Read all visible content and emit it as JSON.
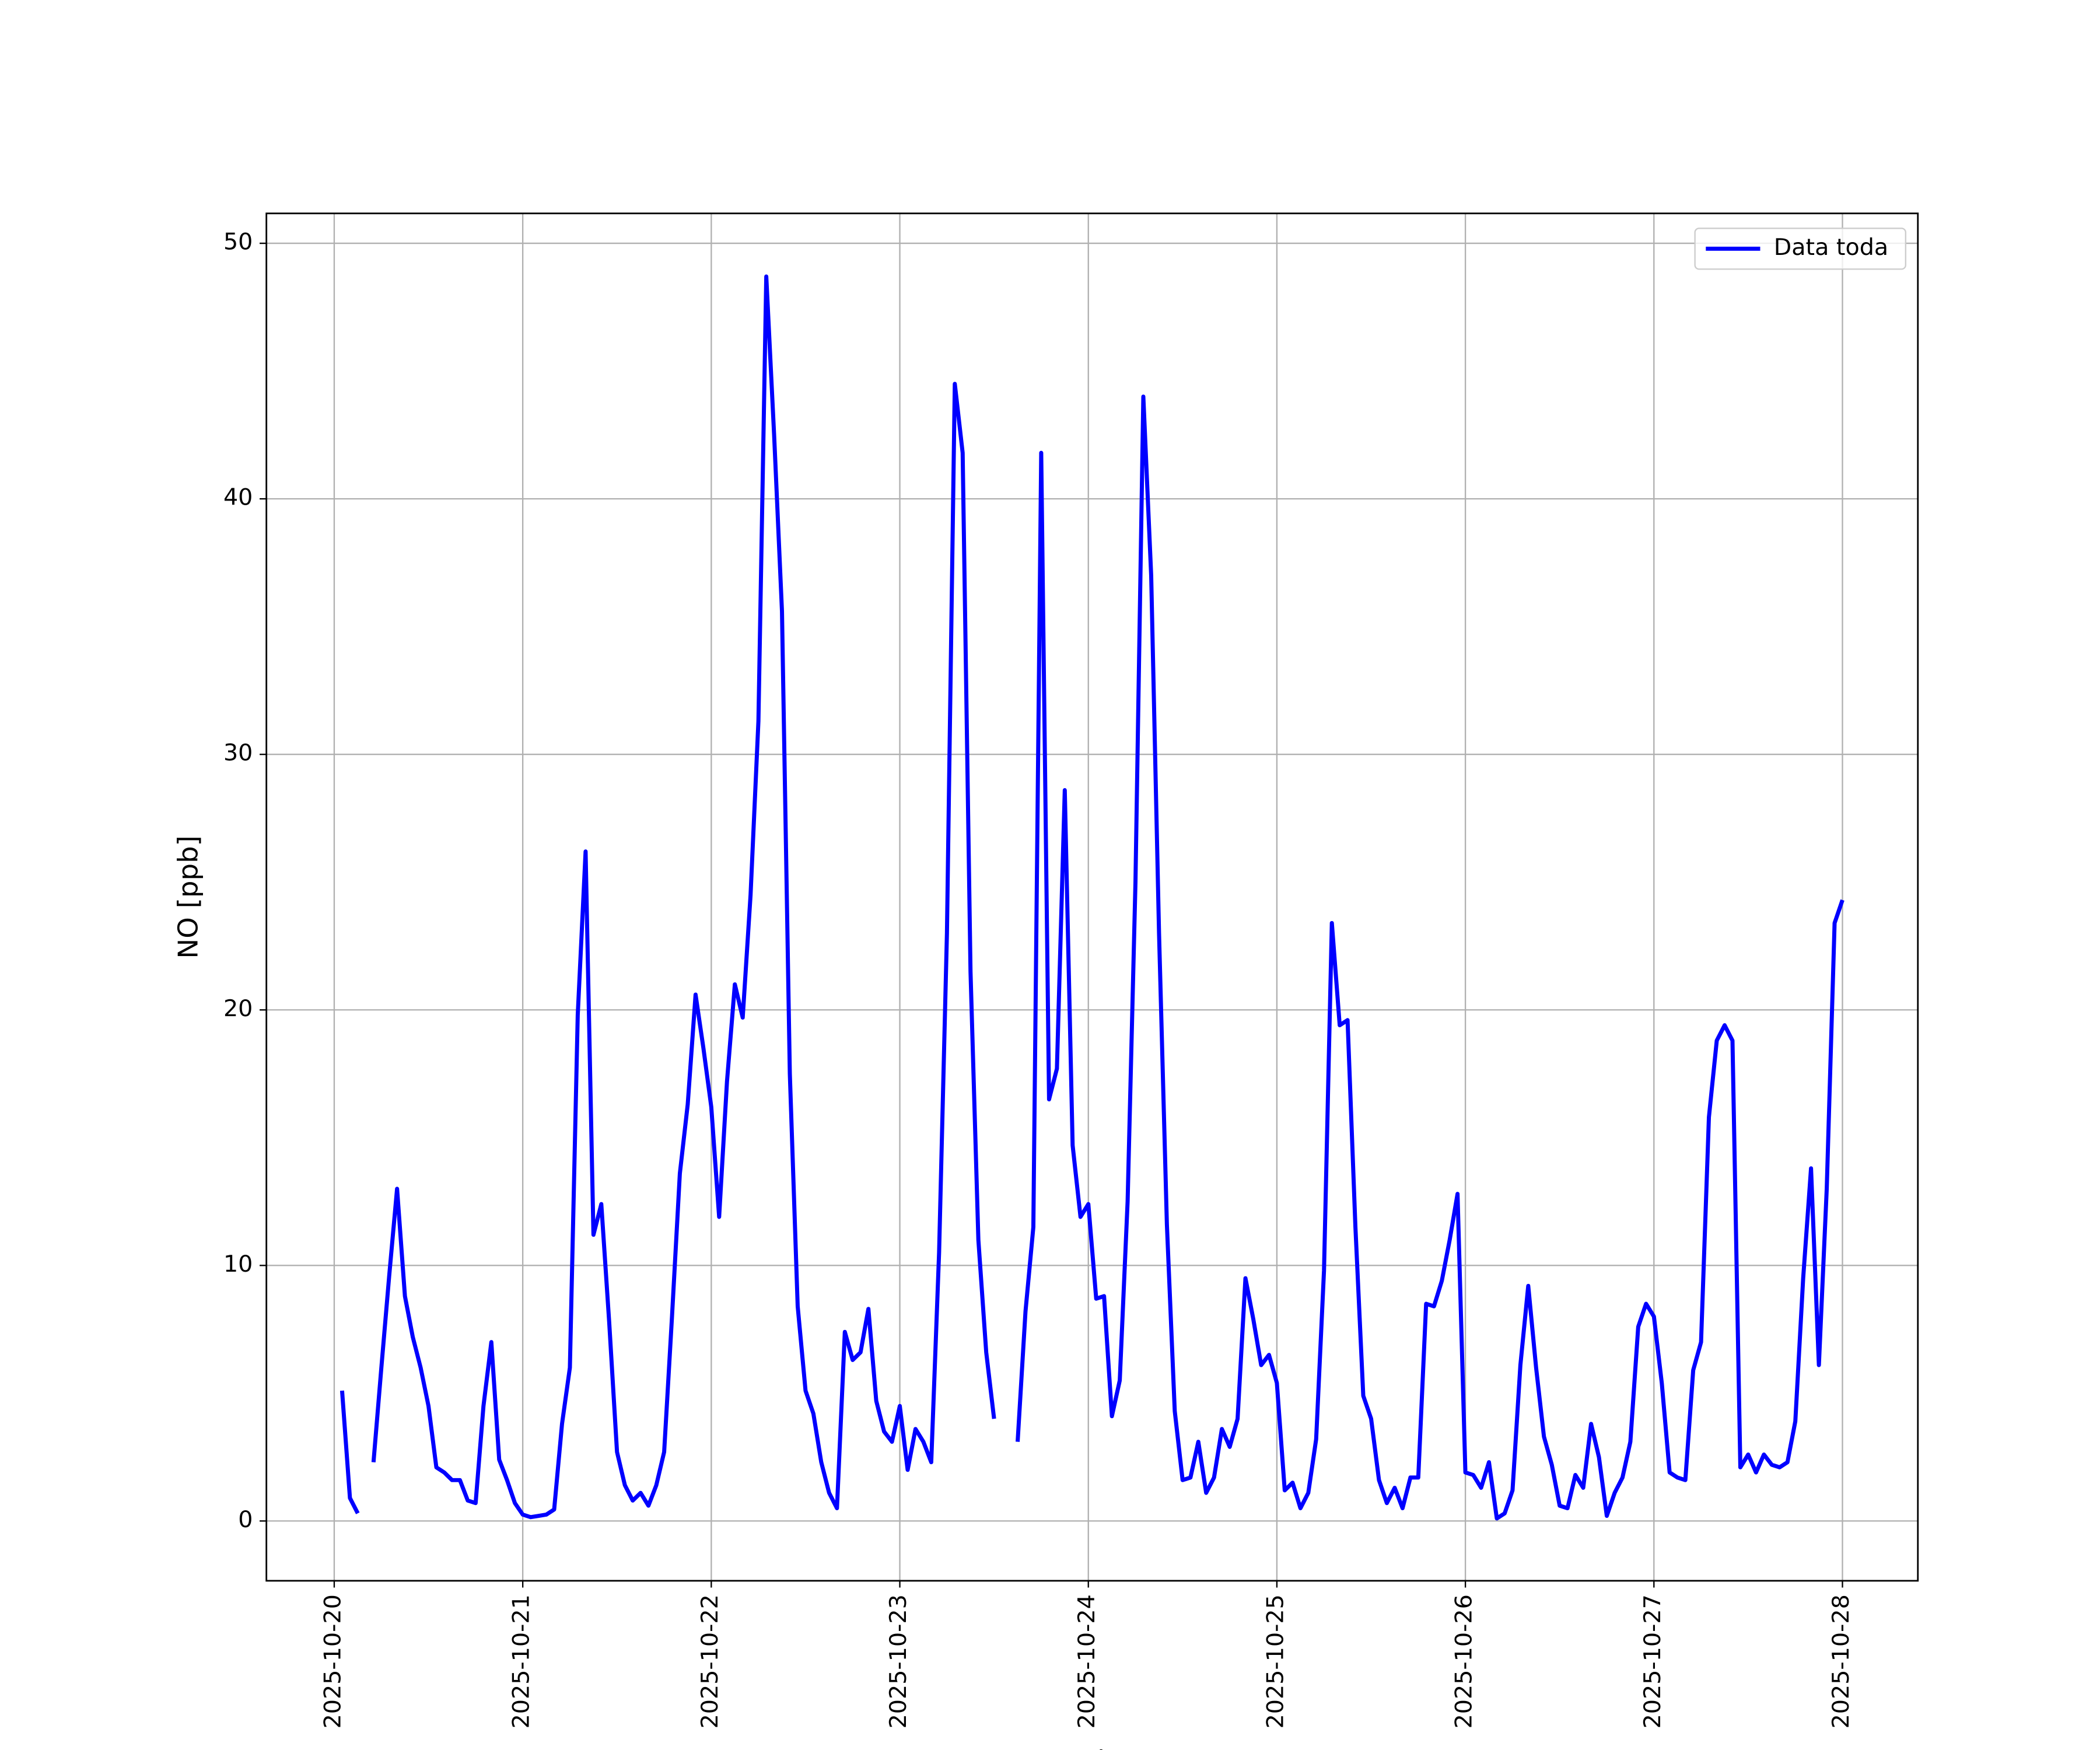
{
  "chart_data": {
    "type": "line",
    "x_label": "Fecha",
    "y_label": "NO [ppb]",
    "x": [
      "2025-10-20 01:00",
      "2025-10-20 02:00",
      "2025-10-20 03:00",
      "2025-10-20 04:00",
      "2025-10-20 05:00",
      "2025-10-20 06:00",
      "2025-10-20 07:00",
      "2025-10-20 08:00",
      "2025-10-20 09:00",
      "2025-10-20 10:00",
      "2025-10-20 11:00",
      "2025-10-20 12:00",
      "2025-10-20 13:00",
      "2025-10-20 14:00",
      "2025-10-20 15:00",
      "2025-10-20 16:00",
      "2025-10-20 17:00",
      "2025-10-20 18:00",
      "2025-10-20 19:00",
      "2025-10-20 20:00",
      "2025-10-20 21:00",
      "2025-10-20 22:00",
      "2025-10-20 23:00",
      "2025-10-21 00:00",
      "2025-10-21 01:00",
      "2025-10-21 02:00",
      "2025-10-21 03:00",
      "2025-10-21 04:00",
      "2025-10-21 05:00",
      "2025-10-21 06:00",
      "2025-10-21 07:00",
      "2025-10-21 08:00",
      "2025-10-21 09:00",
      "2025-10-21 10:00",
      "2025-10-21 11:00",
      "2025-10-21 12:00",
      "2025-10-21 13:00",
      "2025-10-21 14:00",
      "2025-10-21 15:00",
      "2025-10-21 16:00",
      "2025-10-21 17:00",
      "2025-10-21 18:00",
      "2025-10-21 19:00",
      "2025-10-21 20:00",
      "2025-10-21 21:00",
      "2025-10-21 22:00",
      "2025-10-21 23:00",
      "2025-10-22 00:00",
      "2025-10-22 01:00",
      "2025-10-22 02:00",
      "2025-10-22 03:00",
      "2025-10-22 04:00",
      "2025-10-22 05:00",
      "2025-10-22 06:00",
      "2025-10-22 07:00",
      "2025-10-22 08:00",
      "2025-10-22 09:00",
      "2025-10-22 10:00",
      "2025-10-22 11:00",
      "2025-10-22 12:00",
      "2025-10-22 13:00",
      "2025-10-22 14:00",
      "2025-10-22 15:00",
      "2025-10-22 16:00",
      "2025-10-22 17:00",
      "2025-10-22 18:00",
      "2025-10-22 19:00",
      "2025-10-22 20:00",
      "2025-10-22 21:00",
      "2025-10-22 22:00",
      "2025-10-22 23:00",
      "2025-10-23 00:00",
      "2025-10-23 01:00",
      "2025-10-23 02:00",
      "2025-10-23 03:00",
      "2025-10-23 04:00",
      "2025-10-23 05:00",
      "2025-10-23 06:00",
      "2025-10-23 07:00",
      "2025-10-23 08:00",
      "2025-10-23 09:00",
      "2025-10-23 10:00",
      "2025-10-23 11:00",
      "2025-10-23 12:00",
      "2025-10-23 13:00",
      "2025-10-23 14:00",
      "2025-10-23 15:00",
      "2025-10-23 16:00",
      "2025-10-23 17:00",
      "2025-10-23 18:00",
      "2025-10-23 19:00",
      "2025-10-23 20:00",
      "2025-10-23 21:00",
      "2025-10-23 22:00",
      "2025-10-23 23:00",
      "2025-10-24 00:00",
      "2025-10-24 01:00",
      "2025-10-24 02:00",
      "2025-10-24 03:00",
      "2025-10-24 04:00",
      "2025-10-24 05:00",
      "2025-10-24 06:00",
      "2025-10-24 07:00",
      "2025-10-24 08:00",
      "2025-10-24 09:00",
      "2025-10-24 10:00",
      "2025-10-24 11:00",
      "2025-10-24 12:00",
      "2025-10-24 13:00",
      "2025-10-24 14:00",
      "2025-10-24 15:00",
      "2025-10-24 16:00",
      "2025-10-24 17:00",
      "2025-10-24 18:00",
      "2025-10-24 19:00",
      "2025-10-24 20:00",
      "2025-10-24 21:00",
      "2025-10-24 22:00",
      "2025-10-24 23:00",
      "2025-10-25 00:00",
      "2025-10-25 01:00",
      "2025-10-25 02:00",
      "2025-10-25 03:00",
      "2025-10-25 04:00",
      "2025-10-25 05:00",
      "2025-10-25 06:00",
      "2025-10-25 07:00",
      "2025-10-25 08:00",
      "2025-10-25 09:00",
      "2025-10-25 10:00",
      "2025-10-25 11:00",
      "2025-10-25 12:00",
      "2025-10-25 13:00",
      "2025-10-25 14:00",
      "2025-10-25 15:00",
      "2025-10-25 16:00",
      "2025-10-25 17:00",
      "2025-10-25 18:00",
      "2025-10-25 19:00",
      "2025-10-25 20:00",
      "2025-10-25 21:00",
      "2025-10-25 22:00",
      "2025-10-25 23:00",
      "2025-10-26 00:00",
      "2025-10-26 01:00",
      "2025-10-26 02:00",
      "2025-10-26 03:00",
      "2025-10-26 04:00",
      "2025-10-26 05:00",
      "2025-10-26 06:00",
      "2025-10-26 07:00",
      "2025-10-26 08:00",
      "2025-10-26 09:00",
      "2025-10-26 10:00",
      "2025-10-26 11:00",
      "2025-10-26 12:00",
      "2025-10-26 13:00",
      "2025-10-26 14:00",
      "2025-10-26 15:00",
      "2025-10-26 16:00",
      "2025-10-26 17:00",
      "2025-10-26 18:00",
      "2025-10-26 19:00",
      "2025-10-26 20:00",
      "2025-10-26 21:00",
      "2025-10-26 22:00",
      "2025-10-26 23:00",
      "2025-10-27 00:00",
      "2025-10-27 01:00",
      "2025-10-27 02:00",
      "2025-10-27 03:00",
      "2025-10-27 04:00",
      "2025-10-27 05:00",
      "2025-10-27 06:00",
      "2025-10-27 07:00",
      "2025-10-27 08:00",
      "2025-10-27 09:00",
      "2025-10-27 10:00",
      "2025-10-27 11:00",
      "2025-10-27 12:00",
      "2025-10-27 13:00",
      "2025-10-27 14:00",
      "2025-10-27 15:00",
      "2025-10-27 16:00",
      "2025-10-27 17:00",
      "2025-10-27 18:00",
      "2025-10-27 19:00",
      "2025-10-27 20:00",
      "2025-10-27 21:00",
      "2025-10-27 22:00",
      "2025-10-27 23:00",
      "2025-10-28 00:00"
    ],
    "series": [
      {
        "name": "Data toda",
        "color": "#0000ff",
        "values": [
          5.1,
          0.9,
          0.3,
          null,
          2.3,
          6.0,
          9.6,
          13.0,
          8.8,
          7.2,
          6.0,
          4.5,
          2.1,
          1.9,
          1.6,
          1.6,
          0.8,
          0.7,
          4.5,
          7.0,
          2.4,
          1.6,
          0.7,
          0.25,
          0.15,
          0.2,
          0.25,
          0.45,
          3.8,
          6.0,
          19.8,
          26.2,
          11.2,
          12.4,
          7.8,
          2.7,
          1.4,
          0.8,
          1.1,
          0.6,
          1.4,
          2.7,
          8.0,
          13.6,
          16.3,
          20.6,
          18.5,
          16.2,
          11.9,
          17.2,
          21.0,
          19.7,
          24.5,
          31.3,
          48.7,
          42.5,
          35.6,
          17.5,
          8.4,
          5.1,
          4.2,
          2.3,
          1.1,
          0.5,
          7.4,
          6.3,
          6.6,
          8.3,
          4.7,
          3.5,
          3.1,
          4.5,
          2.0,
          3.6,
          3.1,
          2.3,
          10.5,
          23.0,
          44.5,
          41.8,
          21.5,
          11.0,
          6.6,
          4.0,
          null,
          null,
          3.1,
          8.2,
          11.5,
          41.8,
          16.5,
          17.7,
          28.6,
          14.7,
          11.9,
          12.4,
          8.7,
          8.8,
          4.1,
          5.5,
          12.5,
          25.0,
          44.0,
          37.0,
          23.0,
          11.6,
          4.3,
          1.6,
          1.7,
          3.1,
          1.1,
          1.7,
          3.6,
          2.9,
          4.0,
          9.5,
          7.9,
          6.1,
          6.5,
          5.4,
          1.2,
          1.5,
          0.5,
          1.1,
          3.2,
          9.8,
          23.4,
          19.4,
          19.6,
          11.5,
          4.9,
          4.0,
          1.6,
          0.7,
          1.3,
          0.5,
          1.7,
          1.7,
          8.5,
          8.4,
          9.4,
          11.0,
          12.8,
          1.9,
          1.8,
          1.3,
          2.3,
          0.1,
          0.3,
          1.2,
          6.1,
          9.2,
          6.0,
          3.3,
          2.2,
          0.6,
          0.5,
          1.8,
          1.3,
          3.8,
          2.5,
          0.2,
          1.1,
          1.7,
          3.1,
          7.6,
          8.5,
          8.0,
          5.4,
          1.9,
          1.7,
          1.6,
          5.9,
          7.0,
          15.8,
          18.8,
          19.4,
          18.8,
          2.1,
          2.6,
          1.9,
          2.6,
          2.2,
          2.1,
          2.3,
          3.9,
          9.5,
          13.8,
          6.1,
          13.0,
          23.4,
          24.3
        ]
      }
    ],
    "xlim": [
      "2025-10-19 15:22",
      "2025-10-28 09:36"
    ],
    "xticks": [
      "2025-10-20",
      "2025-10-21",
      "2025-10-22",
      "2025-10-23",
      "2025-10-24",
      "2025-10-25",
      "2025-10-26",
      "2025-10-27",
      "2025-10-28"
    ],
    "ylim": [
      -2.34,
      51.17
    ],
    "yticks": [
      0,
      10,
      20,
      30,
      40,
      50
    ],
    "grid": true,
    "legend": "upper right"
  }
}
